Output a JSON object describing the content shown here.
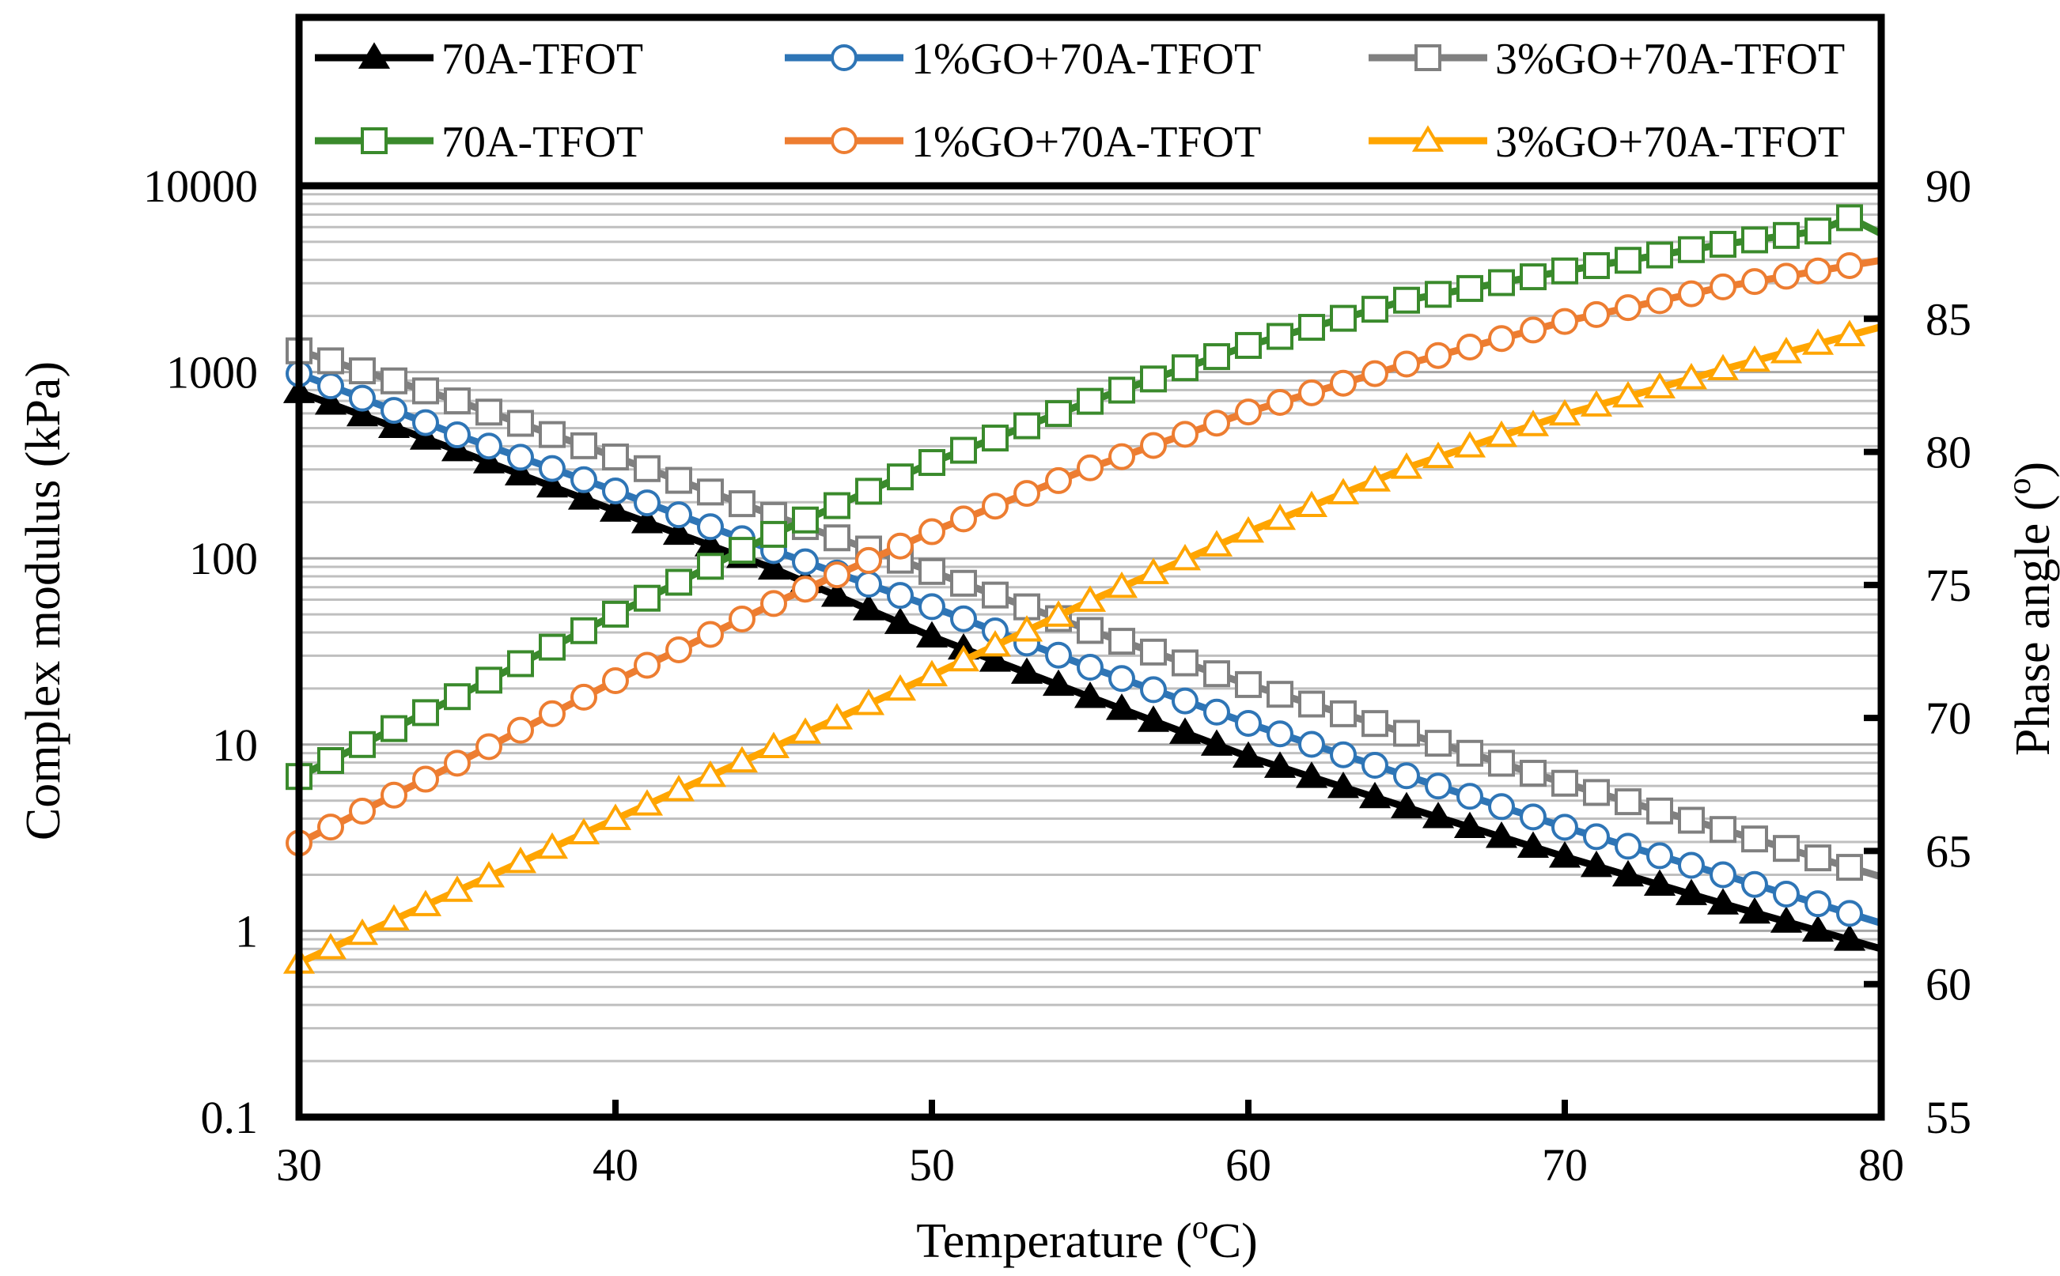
{
  "chart_data": {
    "type": "line",
    "title": "",
    "xlabel": "Temperature (",
    "xlabel_sup": "o",
    "xlabel_end": "C)",
    "ylabel": "Complex modulus (kPa)",
    "y2label": "Phase angle (",
    "y2label_sup": "o",
    "y2label_end": ")",
    "xlim": [
      30,
      80
    ],
    "ylim": [
      0.1,
      10000
    ],
    "y2lim": [
      55,
      90
    ],
    "yscale": "log",
    "grid": true,
    "legend_position": "top",
    "x_ticks": [
      "30",
      "40",
      "50",
      "60",
      "70",
      "80"
    ],
    "y_ticks": [
      "0.1",
      "1",
      "10",
      "100",
      "1000",
      "10000"
    ],
    "y2_ticks": [
      "55",
      "60",
      "65",
      "70",
      "75",
      "80",
      "85",
      "90"
    ],
    "series": [
      {
        "name": "70A-TFOT",
        "axis": "left",
        "marker": "triangle",
        "filled": true,
        "color": "#000000",
        "x": [
          30,
          35,
          40,
          45,
          50,
          55,
          60,
          65,
          70,
          75,
          80
        ],
        "y": [
          780,
          380,
          180,
          88,
          38,
          18,
          8.6,
          4.6,
          2.5,
          1.4,
          0.8
        ]
      },
      {
        "name": "1%GO+70A-TFOT",
        "axis": "left",
        "marker": "circle",
        "filled": false,
        "color": "#2E75B6",
        "x": [
          30,
          35,
          40,
          45,
          50,
          55,
          60,
          65,
          70,
          75,
          80
        ],
        "y": [
          980,
          460,
          230,
          110,
          55,
          26,
          13,
          6.8,
          3.6,
          2.0,
          1.1
        ]
      },
      {
        "name": "3%GO+70A-TFOT",
        "axis": "left",
        "marker": "square",
        "filled": false,
        "color": "#808080",
        "x": [
          30,
          35,
          40,
          45,
          50,
          55,
          60,
          65,
          70,
          75,
          80
        ],
        "y": [
          1300,
          700,
          350,
          170,
          85,
          41,
          21,
          11.5,
          6.2,
          3.5,
          1.95
        ]
      },
      {
        "name": "70A-TFOT",
        "axis": "right",
        "marker": "square",
        "filled": false,
        "color": "#3A8A2C",
        "x": [
          30,
          35,
          40,
          45,
          50,
          55,
          60,
          65,
          70,
          75,
          78,
          79,
          80
        ],
        "y": [
          67.8,
          70.8,
          73.9,
          76.9,
          79.6,
          81.9,
          84.0,
          85.7,
          86.8,
          87.8,
          88.3,
          88.8,
          88.2
        ]
      },
      {
        "name": "1%GO+70A-TFOT",
        "axis": "right",
        "marker": "circle",
        "filled": false,
        "color": "#ED7D31",
        "x": [
          30,
          35,
          40,
          45,
          50,
          55,
          60,
          65,
          70,
          75,
          80
        ],
        "y": [
          65.3,
          68.3,
          71.4,
          74.3,
          77.0,
          79.4,
          81.5,
          83.3,
          84.9,
          86.2,
          87.2
        ]
      },
      {
        "name": "3%GO+70A-TFOT",
        "axis": "right",
        "marker": "triangle",
        "filled": false,
        "color": "#FFA500",
        "x": [
          30,
          35,
          40,
          45,
          50,
          55,
          60,
          65,
          70,
          75,
          80
        ],
        "y": [
          60.8,
          63.5,
          66.2,
          68.9,
          71.6,
          74.4,
          77.0,
          79.4,
          81.4,
          83.1,
          84.7
        ]
      }
    ]
  }
}
